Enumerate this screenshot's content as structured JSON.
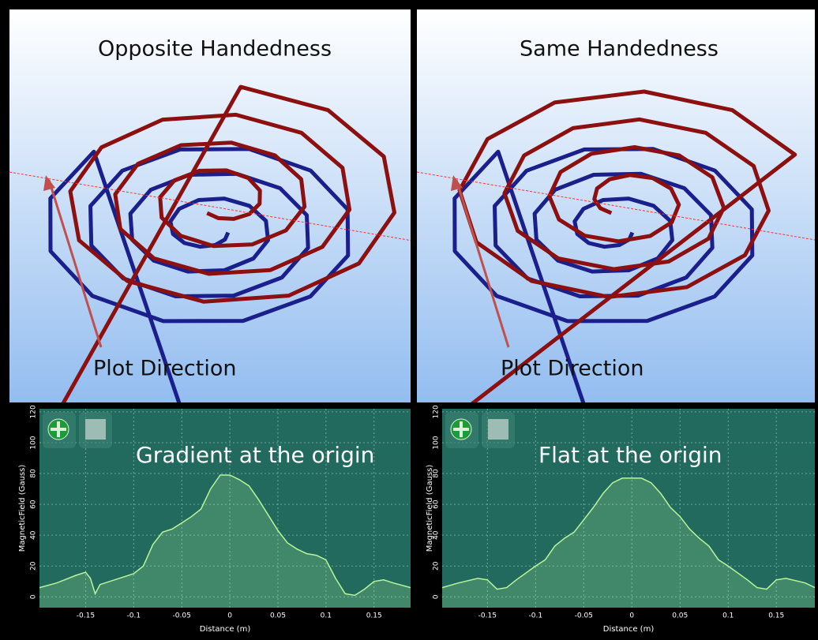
{
  "panels": [
    {
      "title": "Opposite Handedness",
      "annotation": "Plot Direction"
    },
    {
      "title": "Same Handedness",
      "annotation": "Plot Direction"
    }
  ],
  "chart_data": [
    {
      "type": "area",
      "annotation": "Gradient at the origin",
      "x_label": "Distance (m)",
      "y_label": "MagneticField (Gauss)",
      "color": "#b8f59a",
      "grid": true,
      "xlim": [
        -0.198,
        0.188
      ],
      "ylim": [
        -7,
        122
      ],
      "xticks": [
        -0.15,
        -0.1,
        -0.05,
        0,
        0.05,
        0.1,
        0.15
      ],
      "yticks": [
        0,
        20,
        40,
        60,
        80,
        100,
        120
      ],
      "x": [
        -0.198,
        -0.18,
        -0.16,
        -0.15,
        -0.145,
        -0.14,
        -0.135,
        -0.12,
        -0.1,
        -0.09,
        -0.08,
        -0.07,
        -0.06,
        -0.05,
        -0.04,
        -0.03,
        -0.02,
        -0.01,
        0,
        0.01,
        0.02,
        0.03,
        0.04,
        0.05,
        0.06,
        0.07,
        0.08,
        0.09,
        0.1,
        0.11,
        0.12,
        0.13,
        0.14,
        0.15,
        0.16,
        0.17,
        0.188
      ],
      "values": [
        6,
        9,
        14,
        16,
        12,
        2,
        8,
        11,
        15,
        20,
        34,
        42,
        44,
        48,
        52,
        57,
        70,
        79,
        79,
        76,
        72,
        63,
        53,
        43,
        35,
        31,
        28,
        27,
        24,
        12,
        2,
        1,
        5,
        10,
        11,
        9,
        6
      ]
    },
    {
      "type": "area",
      "annotation": "Flat at the origin",
      "x_label": "Distance (m)",
      "y_label": "MagneticField (Gauss)",
      "color": "#b8f59a",
      "grid": true,
      "xlim": [
        -0.197,
        0.19
      ],
      "ylim": [
        -7,
        122
      ],
      "xticks": [
        -0.15,
        -0.1,
        -0.05,
        0,
        0.05,
        0.1,
        0.15
      ],
      "yticks": [
        0,
        20,
        40,
        60,
        80,
        100,
        120
      ],
      "x": [
        -0.197,
        -0.18,
        -0.16,
        -0.15,
        -0.14,
        -0.13,
        -0.12,
        -0.1,
        -0.09,
        -0.08,
        -0.07,
        -0.06,
        -0.05,
        -0.04,
        -0.03,
        -0.02,
        -0.01,
        0,
        0.01,
        0.02,
        0.03,
        0.04,
        0.05,
        0.06,
        0.07,
        0.08,
        0.09,
        0.1,
        0.12,
        0.13,
        0.14,
        0.15,
        0.16,
        0.18,
        0.19
      ],
      "values": [
        6,
        9,
        12,
        11,
        5,
        6,
        11,
        20,
        24,
        33,
        38,
        42,
        50,
        58,
        67,
        74,
        77,
        77,
        77,
        74,
        67,
        58,
        52,
        44,
        38,
        33,
        24,
        20,
        11,
        6,
        5,
        11,
        12,
        9,
        6
      ]
    }
  ]
}
